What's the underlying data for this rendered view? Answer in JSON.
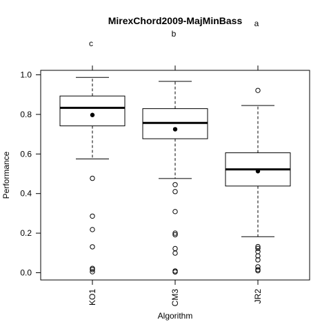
{
  "chart_data": {
    "type": "boxplot",
    "title": "MirexChord2009-MajMinBass",
    "xlabel": "Algorithm",
    "ylabel": "Performance",
    "ylim": [
      -0.04,
      1.02
    ],
    "yticks": [
      "0.0",
      "0.2",
      "0.4",
      "0.6",
      "0.8",
      "1.0"
    ],
    "ytick_values": [
      0.0,
      0.2,
      0.4,
      0.6,
      0.8,
      1.0
    ],
    "categories": [
      "KO1",
      "CM3",
      "JR2"
    ],
    "group_letters": [
      "c",
      "b",
      "a"
    ],
    "boxes": [
      {
        "name": "KO1",
        "whisker_low": 0.575,
        "q1": 0.742,
        "median": 0.833,
        "q3": 0.893,
        "whisker_high": 0.987,
        "mean": 0.797,
        "outliers": [
          0.477,
          0.286,
          0.218,
          0.131,
          0.022,
          0.016,
          0.005
        ]
      },
      {
        "name": "CM3",
        "whisker_low": 0.476,
        "q1": 0.677,
        "median": 0.757,
        "q3": 0.829,
        "whisker_high": 0.967,
        "mean": 0.725,
        "outliers": [
          0.445,
          0.41,
          0.309,
          0.2,
          0.192,
          0.122,
          0.099,
          0.009,
          0.004
        ]
      },
      {
        "name": "JR2",
        "whisker_low": 0.182,
        "q1": 0.438,
        "median": 0.522,
        "q3": 0.606,
        "whisker_high": 0.845,
        "mean": 0.513,
        "outliers": [
          0.921,
          0.132,
          0.123,
          0.107,
          0.085,
          0.065,
          0.03,
          0.016,
          0.01
        ]
      }
    ]
  }
}
